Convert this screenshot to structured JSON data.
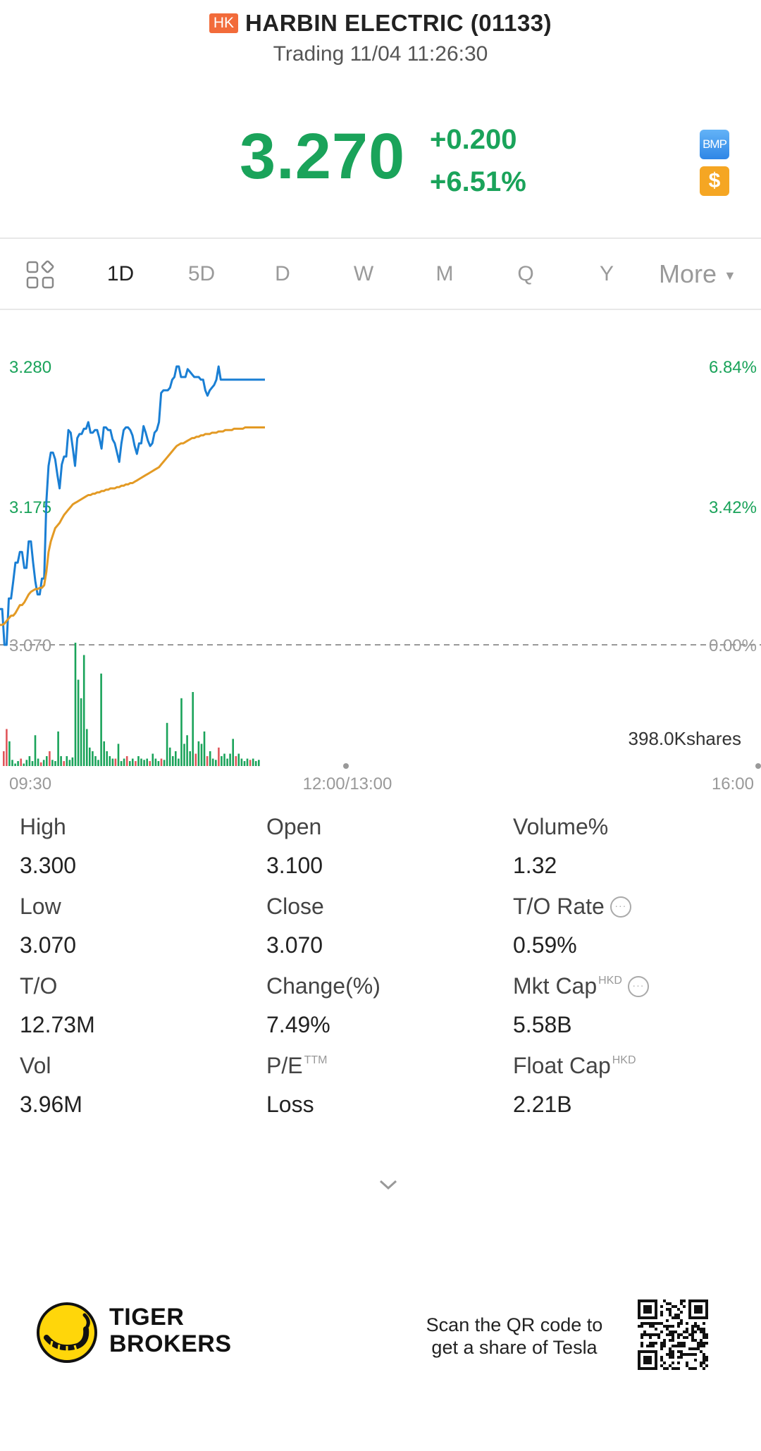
{
  "header": {
    "market_badge": "HK",
    "title": "HARBIN ELECTRIC (01133)",
    "status": "Trading 11/04 11:26:30"
  },
  "quote": {
    "price": "3.270",
    "change": "+0.200",
    "change_pct": "+6.51%",
    "bmp_label": "BMP",
    "dollar_label": "$",
    "up_color": "#1aa35a"
  },
  "tabs": {
    "items": [
      "1D",
      "5D",
      "D",
      "W",
      "M",
      "Q",
      "Y"
    ],
    "active": "1D",
    "more_label": "More"
  },
  "chart_data": {
    "type": "line",
    "y_left_ticks": [
      "3.280",
      "3.175",
      "3.070"
    ],
    "y_right_ticks": [
      "6.84%",
      "3.42%",
      "0.00%"
    ],
    "x_ticks": [
      "09:30",
      "12:00/13:00",
      "16:00"
    ],
    "prev_close": 3.07,
    "ylim": [
      3.07,
      3.28
    ],
    "volume_label": "398.0Kshares",
    "series": [
      {
        "color": "#1a7fd4",
        "values": [
          3.097,
          3.097,
          3.07,
          3.07,
          3.105,
          3.105,
          3.118,
          3.132,
          3.132,
          3.14,
          3.14,
          3.128,
          3.128,
          3.148,
          3.148,
          3.132,
          3.118,
          3.108,
          3.108,
          3.12,
          3.12,
          3.178,
          3.205,
          3.215,
          3.215,
          3.21,
          3.198,
          3.188,
          3.206,
          3.212,
          3.212,
          3.232,
          3.23,
          3.218,
          3.205,
          3.226,
          3.229,
          3.229,
          3.233,
          3.233,
          3.238,
          3.23,
          3.23,
          3.232,
          3.232,
          3.226,
          3.218,
          3.234,
          3.234,
          3.232,
          3.232,
          3.225,
          3.222,
          3.215,
          3.208,
          3.222,
          3.232,
          3.234,
          3.234,
          3.232,
          3.228,
          3.22,
          3.214,
          3.222,
          3.222,
          3.235,
          3.23,
          3.224,
          3.22,
          3.222,
          3.23,
          3.232,
          3.238,
          3.26,
          3.262,
          3.262,
          3.262,
          3.264,
          3.27,
          3.272,
          3.28,
          3.28,
          3.272,
          3.272,
          3.272,
          3.278,
          3.276,
          3.274,
          3.272,
          3.272,
          3.272,
          3.27,
          3.27,
          3.262,
          3.258,
          3.262,
          3.264,
          3.266,
          3.27,
          3.28,
          3.27,
          3.27,
          3.27,
          3.27,
          3.27,
          3.27,
          3.27,
          3.27,
          3.27,
          3.27,
          3.27,
          3.27,
          3.27,
          3.27,
          3.27,
          3.27,
          3.27,
          3.27,
          3.27,
          3.27,
          3.27
        ]
      },
      {
        "color": "#e39a24",
        "values": [
          3.085,
          3.085,
          3.086,
          3.088,
          3.09,
          3.092,
          3.092,
          3.094,
          3.097,
          3.1,
          3.1,
          3.102,
          3.105,
          3.108,
          3.11,
          3.111,
          3.112,
          3.112,
          3.113,
          3.113,
          3.115,
          3.125,
          3.14,
          3.148,
          3.153,
          3.158,
          3.16,
          3.162,
          3.165,
          3.168,
          3.17,
          3.172,
          3.174,
          3.176,
          3.177,
          3.178,
          3.179,
          3.18,
          3.181,
          3.182,
          3.183,
          3.183,
          3.184,
          3.184,
          3.185,
          3.185,
          3.186,
          3.186,
          3.187,
          3.187,
          3.188,
          3.188,
          3.188,
          3.189,
          3.189,
          3.19,
          3.19,
          3.191,
          3.191,
          3.192,
          3.192,
          3.193,
          3.194,
          3.195,
          3.196,
          3.197,
          3.198,
          3.199,
          3.2,
          3.201,
          3.202,
          3.203,
          3.204,
          3.206,
          3.208,
          3.21,
          3.212,
          3.214,
          3.216,
          3.218,
          3.22,
          3.221,
          3.222,
          3.222,
          3.223,
          3.224,
          3.225,
          3.226,
          3.226,
          3.227,
          3.227,
          3.228,
          3.228,
          3.229,
          3.229,
          3.229,
          3.23,
          3.23,
          3.23,
          3.231,
          3.231,
          3.231,
          3.232,
          3.232,
          3.232,
          3.232,
          3.233,
          3.233,
          3.233,
          3.233,
          3.233,
          3.234,
          3.234,
          3.234,
          3.234,
          3.234,
          3.234,
          3.234,
          3.234,
          3.234,
          3.234
        ]
      }
    ],
    "volume_up_color": "#1aa35a",
    "volume_down_color": "#e0555a",
    "volume": [
      0.12,
      0.3,
      0.2,
      0.05,
      0.02,
      0.04,
      0.06,
      0.02,
      0.05,
      0.08,
      0.04,
      0.25,
      0.06,
      0.03,
      0.05,
      0.08,
      0.12,
      0.05,
      0.04,
      0.28,
      0.08,
      0.04,
      0.08,
      0.05,
      0.07,
      1.0,
      0.7,
      0.55,
      0.9,
      0.3,
      0.15,
      0.12,
      0.08,
      0.05,
      0.75,
      0.2,
      0.12,
      0.08,
      0.06,
      0.06,
      0.18,
      0.04,
      0.06,
      0.08,
      0.04,
      0.06,
      0.04,
      0.08,
      0.06,
      0.05,
      0.06,
      0.04,
      0.1,
      0.06,
      0.04,
      0.06,
      0.05,
      0.35,
      0.15,
      0.08,
      0.12,
      0.06,
      0.55,
      0.18,
      0.25,
      0.12,
      0.6,
      0.1,
      0.2,
      0.18,
      0.28,
      0.08,
      0.12,
      0.06,
      0.05,
      0.15,
      0.08,
      0.1,
      0.06,
      0.1,
      0.22,
      0.08,
      0.1,
      0.06,
      0.04,
      0.06,
      0.05,
      0.06,
      0.04,
      0.05
    ],
    "volume_direction": [
      "d",
      "d",
      "u",
      "u",
      "u",
      "u",
      "d",
      "u",
      "u",
      "u",
      "u",
      "u",
      "u",
      "d",
      "u",
      "u",
      "d",
      "u",
      "u",
      "u",
      "u",
      "d",
      "u",
      "u",
      "u",
      "u",
      "u",
      "u",
      "u",
      "u",
      "u",
      "u",
      "u",
      "u",
      "u",
      "u",
      "u",
      "u",
      "u",
      "d",
      "u",
      "u",
      "u",
      "d",
      "u",
      "u",
      "d",
      "u",
      "u",
      "u",
      "u",
      "d",
      "u",
      "u",
      "u",
      "d",
      "u",
      "u",
      "u",
      "u",
      "u",
      "u",
      "u",
      "u",
      "u",
      "u",
      "u",
      "d",
      "u",
      "u",
      "u",
      "d",
      "u",
      "u",
      "u",
      "d",
      "u",
      "u",
      "u",
      "u",
      "u",
      "d",
      "u",
      "u",
      "u",
      "u",
      "d",
      "u",
      "u",
      "u"
    ]
  },
  "stats": [
    {
      "label": "High",
      "value": "3.300",
      "sup": "",
      "info": false
    },
    {
      "label": "Open",
      "value": "3.100",
      "sup": "",
      "info": false
    },
    {
      "label": "Volume%",
      "value": "1.32",
      "sup": "",
      "info": false
    },
    {
      "label": "Low",
      "value": "3.070",
      "sup": "",
      "info": false
    },
    {
      "label": "Close",
      "value": "3.070",
      "sup": "",
      "info": false
    },
    {
      "label": "T/O Rate",
      "value": "0.59%",
      "sup": "",
      "info": true
    },
    {
      "label": "T/O",
      "value": "12.73M",
      "sup": "",
      "info": false
    },
    {
      "label": "Change(%)",
      "value": "7.49%",
      "sup": "",
      "info": false
    },
    {
      "label": "Mkt Cap",
      "value": "5.58B",
      "sup": "HKD",
      "info": true
    },
    {
      "label": "Vol",
      "value": "3.96M",
      "sup": "",
      "info": false
    },
    {
      "label": "P/E",
      "value": "Loss",
      "sup": "TTM",
      "info": false
    },
    {
      "label": "Float Cap",
      "value": "2.21B",
      "sup": "HKD",
      "info": false
    }
  ],
  "footer": {
    "brand_line1": "TIGER",
    "brand_line2": "BROKERS",
    "promo_line1": "Scan the QR code to",
    "promo_line2": "get a share of Tesla"
  }
}
